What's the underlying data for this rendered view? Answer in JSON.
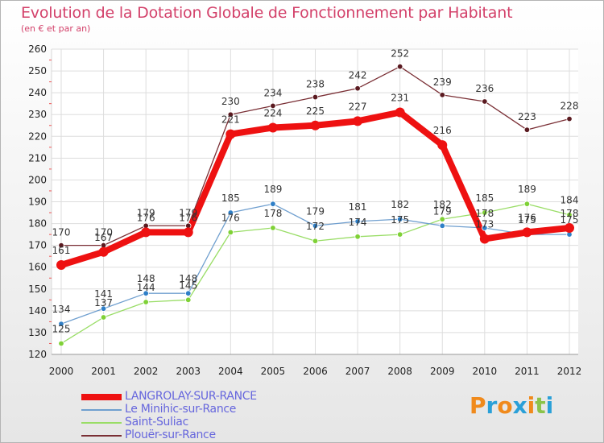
{
  "title": "Evolution de la Dotation Globale de Fonctionnement par Habitant",
  "subtitle": "(en € et par an)",
  "logo": {
    "text": "Proxiti",
    "letters": [
      "P",
      "r",
      "o",
      "x",
      "i",
      "t",
      "i"
    ],
    "colors": [
      "#f08a1c",
      "#2aa0d8",
      "#f08a1c",
      "#2aa0d8",
      "#f08a1c",
      "#8bc34a",
      "#2aa0d8"
    ]
  },
  "chart_data": {
    "type": "line",
    "title": "Evolution de la Dotation Globale de Fonctionnement par Habitant",
    "subtitle": "(en € et par an)",
    "xlabel": "",
    "ylabel": "",
    "x": [
      "2000",
      "2001",
      "2002",
      "2003",
      "2004",
      "2005",
      "2006",
      "2007",
      "2008",
      "2009",
      "2010",
      "2011",
      "2012"
    ],
    "ylim": [
      120,
      260
    ],
    "yticks": [
      120,
      130,
      140,
      150,
      160,
      170,
      180,
      190,
      200,
      210,
      220,
      230,
      240,
      250,
      260
    ],
    "grid": true,
    "series": [
      {
        "name": "LANGROLAY-SUR-RANCE",
        "color": "#ee1111",
        "values": [
          161,
          167,
          176,
          176,
          221,
          224,
          225,
          227,
          231,
          216,
          173,
          176,
          178
        ]
      },
      {
        "name": "Le Minihic-sur-Rance",
        "color": "#6f9fcf",
        "values": [
          134,
          141,
          148,
          148,
          185,
          189,
          179,
          181,
          182,
          179,
          178,
          175,
          175
        ]
      },
      {
        "name": "Saint-Suliac",
        "color": "#99dd66",
        "values": [
          125,
          137,
          144,
          145,
          176,
          178,
          172,
          174,
          175,
          182,
          185,
          189,
          184
        ]
      },
      {
        "name": "Plouër-sur-Rance",
        "color": "#7a2f35",
        "values": [
          170,
          170,
          179,
          179,
          230,
          234,
          238,
          242,
          252,
          239,
          236,
          223,
          228
        ]
      }
    ]
  }
}
